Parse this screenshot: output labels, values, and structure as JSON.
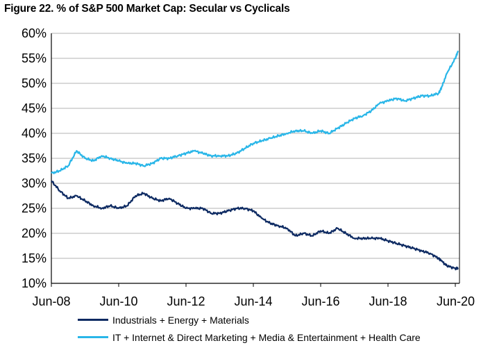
{
  "chart_data": {
    "type": "line",
    "title": "Figure 22. % of S&P 500 Market Cap: Secular vs Cyclicals",
    "xlabel": "",
    "ylabel": "",
    "x_tick_labels": [
      "Jun-08",
      "Jun-10",
      "Jun-12",
      "Jun-14",
      "Jun-16",
      "Jun-18",
      "Jun-20"
    ],
    "y_tick_labels": [
      "10%",
      "15%",
      "20%",
      "25%",
      "30%",
      "35%",
      "40%",
      "45%",
      "50%",
      "55%",
      "60%"
    ],
    "xlim": [
      "2008-06",
      "2020-06"
    ],
    "ylim": [
      10,
      60
    ],
    "y_unit": "%",
    "grid": "horizontal",
    "legend_position": "bottom",
    "series": [
      {
        "name": "Industrials + Energy + Materials",
        "color": "#0d2a62",
        "x": [
          "2008-06",
          "2008-09",
          "2008-12",
          "2009-03",
          "2009-06",
          "2009-09",
          "2009-12",
          "2010-03",
          "2010-06",
          "2010-09",
          "2010-12",
          "2011-03",
          "2011-06",
          "2011-09",
          "2011-12",
          "2012-03",
          "2012-06",
          "2012-09",
          "2012-12",
          "2013-03",
          "2013-06",
          "2013-09",
          "2013-12",
          "2014-03",
          "2014-06",
          "2014-09",
          "2014-12",
          "2015-03",
          "2015-06",
          "2015-09",
          "2015-12",
          "2016-03",
          "2016-06",
          "2016-09",
          "2016-12",
          "2017-03",
          "2017-06",
          "2017-09",
          "2017-12",
          "2018-03",
          "2018-06",
          "2018-09",
          "2018-12",
          "2019-03",
          "2019-06",
          "2019-09",
          "2019-12",
          "2020-01",
          "2020-03",
          "2020-06",
          "2020-09"
        ],
        "values": [
          30.5,
          28.5,
          27.0,
          27.5,
          26.5,
          25.5,
          25.0,
          25.5,
          25.0,
          25.5,
          27.5,
          28.0,
          27.0,
          26.5,
          27.0,
          26.0,
          25.0,
          25.0,
          25.0,
          24.0,
          24.0,
          24.5,
          25.0,
          25.0,
          24.5,
          23.0,
          22.0,
          21.5,
          21.0,
          19.5,
          20.0,
          19.5,
          20.5,
          20.0,
          21.0,
          20.0,
          19.0,
          19.0,
          19.0,
          19.0,
          18.5,
          18.0,
          17.5,
          17.0,
          16.5,
          16.0,
          15.0,
          14.5,
          13.5,
          13.0,
          13.0
        ]
      },
      {
        "name": "IT + Internet & Direct Marketing + Media & Entertainment + Health Care",
        "color": "#29b6e8",
        "x": [
          "2008-06",
          "2008-09",
          "2008-12",
          "2009-03",
          "2009-06",
          "2009-09",
          "2009-12",
          "2010-03",
          "2010-06",
          "2010-09",
          "2010-12",
          "2011-03",
          "2011-06",
          "2011-09",
          "2011-12",
          "2012-03",
          "2012-06",
          "2012-09",
          "2012-12",
          "2013-03",
          "2013-06",
          "2013-09",
          "2013-12",
          "2014-03",
          "2014-06",
          "2014-09",
          "2014-12",
          "2015-03",
          "2015-06",
          "2015-09",
          "2015-12",
          "2016-03",
          "2016-06",
          "2016-09",
          "2016-12",
          "2017-03",
          "2017-06",
          "2017-09",
          "2017-12",
          "2018-03",
          "2018-06",
          "2018-09",
          "2018-12",
          "2019-03",
          "2019-06",
          "2019-09",
          "2019-12",
          "2020-01",
          "2020-03",
          "2020-06",
          "2020-09"
        ],
        "values": [
          32.0,
          32.5,
          33.5,
          36.5,
          35.0,
          34.5,
          35.5,
          35.0,
          34.5,
          34.0,
          34.0,
          33.5,
          34.0,
          35.0,
          35.0,
          35.5,
          36.0,
          36.5,
          36.0,
          35.5,
          35.5,
          35.5,
          36.0,
          37.0,
          38.0,
          38.5,
          39.0,
          39.5,
          40.0,
          40.5,
          40.5,
          40.0,
          40.5,
          40.0,
          41.0,
          42.0,
          43.0,
          43.5,
          44.5,
          46.0,
          46.5,
          47.0,
          46.5,
          47.0,
          47.5,
          47.5,
          48.0,
          49.0,
          52.0,
          55.0,
          56.5
        ]
      }
    ]
  }
}
